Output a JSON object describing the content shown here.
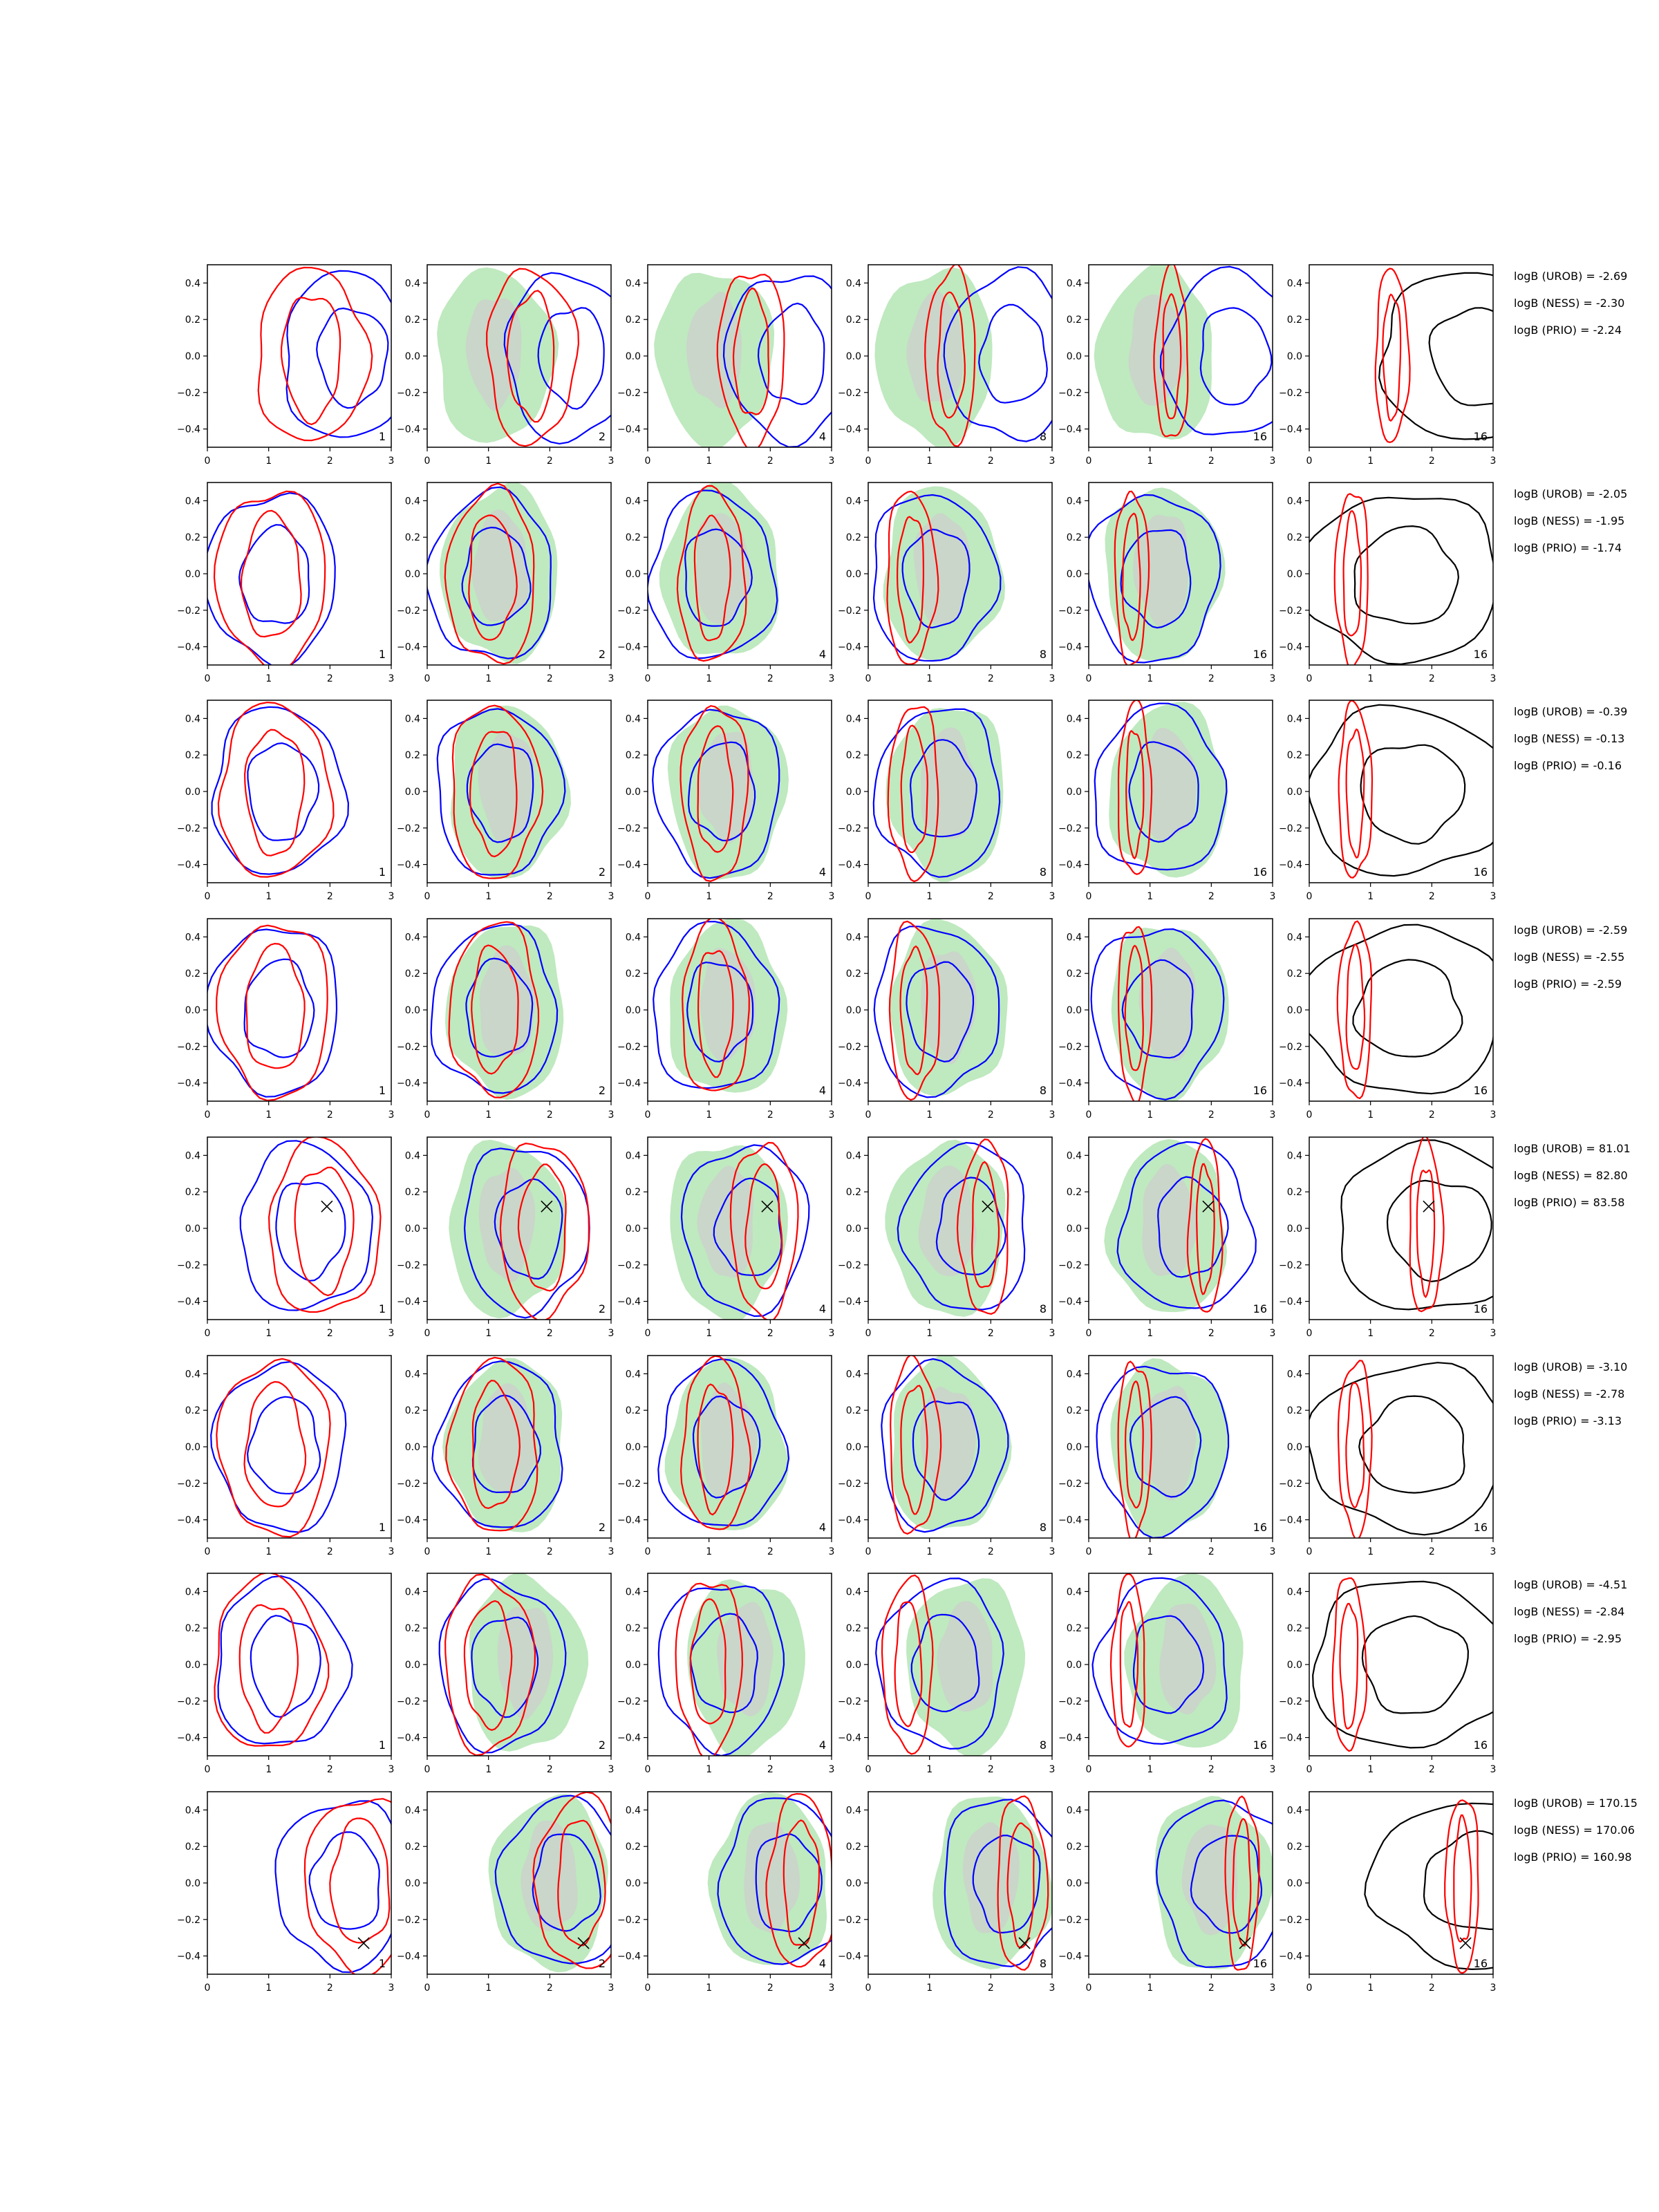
{
  "chart_data": {
    "type": "contour-grid",
    "xlim": [
      0,
      3
    ],
    "ylim": [
      -0.5,
      0.5
    ],
    "x_ticks": [
      0,
      1,
      2,
      3
    ],
    "y_ticks": [
      -0.4,
      -0.2,
      0.0,
      0.2,
      0.4
    ],
    "y_tick_labels": [
      "−0.4",
      "−0.2",
      "0.0",
      "0.2",
      "0.4"
    ],
    "column_labels": [
      "1",
      "2",
      "4",
      "8",
      "16",
      "16"
    ],
    "colors": {
      "blue": "#0000ff",
      "red": "#ff0000",
      "black": "#000000",
      "fill_outer": "#bfe9bf",
      "fill_inner": "#c9d6c9",
      "axis": "#000000"
    },
    "logB_labels": [
      "logB (UROB)",
      "logB (NESS)",
      "logB (PRIO)"
    ],
    "rows": [
      {
        "logB": [
          "-2.69",
          "-2.30",
          "-2.24"
        ],
        "red": [
          1.7,
          0.0
        ],
        "blue": [
          2.3,
          0.0
        ],
        "fill": [
          1.1,
          0.0
        ],
        "marker": null
      },
      {
        "logB": [
          "-2.05",
          "-1.95",
          "-1.74"
        ],
        "red": [
          1.05,
          -0.02
        ],
        "blue": [
          1.05,
          -0.02
        ],
        "fill": [
          1.2,
          0.0
        ],
        "marker": null
      },
      {
        "logB": [
          "-0.39",
          "-0.13",
          "-0.16"
        ],
        "red": [
          1.1,
          0.0
        ],
        "blue": [
          1.15,
          0.0
        ],
        "fill": [
          1.3,
          0.0
        ],
        "marker": null
      },
      {
        "logB": [
          "-2.59",
          "-2.55",
          "-2.59"
        ],
        "red": [
          1.1,
          0.0
        ],
        "blue": [
          1.1,
          0.0
        ],
        "fill": [
          1.3,
          0.0
        ],
        "marker": null
      },
      {
        "logB": [
          "81.01",
          "82.80",
          "83.58"
        ],
        "red": [
          1.9,
          0.0
        ],
        "blue": [
          1.6,
          0.0
        ],
        "fill": [
          1.3,
          0.0
        ],
        "marker": [
          1.95,
          0.12
        ]
      },
      {
        "logB": [
          "-3.10",
          "-2.78",
          "-3.13"
        ],
        "red": [
          1.1,
          0.0
        ],
        "blue": [
          1.2,
          0.0
        ],
        "fill": [
          1.3,
          0.0
        ],
        "marker": null
      },
      {
        "logB": [
          "-4.51",
          "-2.84",
          "-2.95"
        ],
        "red": [
          1.0,
          0.0
        ],
        "blue": [
          1.2,
          0.0
        ],
        "fill": [
          1.6,
          0.0
        ],
        "marker": null
      },
      {
        "logB": [
          "170.15",
          "170.06",
          "160.98"
        ],
        "red": [
          2.5,
          0.0
        ],
        "blue": [
          2.2,
          0.0
        ],
        "fill": [
          2.0,
          0.0
        ],
        "marker": [
          2.55,
          -0.33
        ]
      }
    ]
  }
}
